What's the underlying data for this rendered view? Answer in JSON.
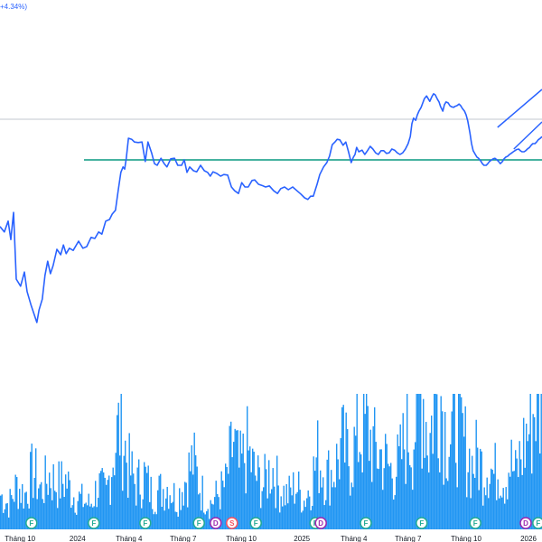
{
  "header": {
    "change_text": "+4.34%)"
  },
  "colors": {
    "price_line": "#2962ff",
    "support_line": "#089981",
    "volume": "#2196f3",
    "reference_line": "#c3c7cf",
    "event_f": "#22ab94",
    "event_d": "#9c27b0",
    "event_s": "#f7525f",
    "axis_text": "#131722"
  },
  "chart_data": {
    "type": "line",
    "title": "",
    "xlabel": "",
    "ylabel": "",
    "grid": false,
    "x_ticks": [
      {
        "label": "Tháng 10",
        "pos": 0.037
      },
      {
        "label": "2024",
        "pos": 0.143
      },
      {
        "label": "Tháng 4",
        "pos": 0.238
      },
      {
        "label": "Tháng 7",
        "pos": 0.338
      },
      {
        "label": "Tháng 10",
        "pos": 0.445
      },
      {
        "label": "2025",
        "pos": 0.557
      },
      {
        "label": "Tháng 4",
        "pos": 0.653
      },
      {
        "label": "Tháng 7",
        "pos": 0.753
      },
      {
        "label": "Tháng 10",
        "pos": 0.86
      },
      {
        "label": "2026",
        "pos": 0.975
      }
    ],
    "price_series": [
      [
        0.0,
        0.418
      ],
      [
        0.008,
        0.428
      ],
      [
        0.015,
        0.408
      ],
      [
        0.02,
        0.442
      ],
      [
        0.025,
        0.392
      ],
      [
        0.03,
        0.515
      ],
      [
        0.038,
        0.528
      ],
      [
        0.045,
        0.502
      ],
      [
        0.05,
        0.538
      ],
      [
        0.057,
        0.562
      ],
      [
        0.063,
        0.58
      ],
      [
        0.068,
        0.595
      ],
      [
        0.072,
        0.572
      ],
      [
        0.078,
        0.552
      ],
      [
        0.083,
        0.508
      ],
      [
        0.088,
        0.482
      ],
      [
        0.093,
        0.505
      ],
      [
        0.098,
        0.49
      ],
      [
        0.105,
        0.46
      ],
      [
        0.112,
        0.47
      ],
      [
        0.117,
        0.452
      ],
      [
        0.122,
        0.468
      ],
      [
        0.128,
        0.458
      ],
      [
        0.135,
        0.462
      ],
      [
        0.145,
        0.445
      ],
      [
        0.153,
        0.458
      ],
      [
        0.16,
        0.455
      ],
      [
        0.168,
        0.438
      ],
      [
        0.175,
        0.44
      ],
      [
        0.182,
        0.428
      ],
      [
        0.188,
        0.432
      ],
      [
        0.195,
        0.408
      ],
      [
        0.202,
        0.405
      ],
      [
        0.207,
        0.395
      ],
      [
        0.213,
        0.388
      ],
      [
        0.218,
        0.352
      ],
      [
        0.223,
        0.318
      ],
      [
        0.227,
        0.308
      ],
      [
        0.23,
        0.312
      ],
      [
        0.233,
        0.292
      ],
      [
        0.237,
        0.255
      ],
      [
        0.243,
        0.257
      ],
      [
        0.248,
        0.262
      ],
      [
        0.255,
        0.263
      ],
      [
        0.262,
        0.262
      ],
      [
        0.268,
        0.298
      ],
      [
        0.273,
        0.262
      ],
      [
        0.28,
        0.283
      ],
      [
        0.285,
        0.302
      ],
      [
        0.29,
        0.305
      ],
      [
        0.297,
        0.292
      ],
      [
        0.303,
        0.302
      ],
      [
        0.308,
        0.308
      ],
      [
        0.315,
        0.293
      ],
      [
        0.322,
        0.292
      ],
      [
        0.328,
        0.305
      ],
      [
        0.335,
        0.305
      ],
      [
        0.34,
        0.295
      ],
      [
        0.345,
        0.318
      ],
      [
        0.35,
        0.308
      ],
      [
        0.357,
        0.315
      ],
      [
        0.363,
        0.317
      ],
      [
        0.37,
        0.305
      ],
      [
        0.377,
        0.315
      ],
      [
        0.383,
        0.318
      ],
      [
        0.388,
        0.325
      ],
      [
        0.393,
        0.317
      ],
      [
        0.4,
        0.32
      ],
      [
        0.407,
        0.325
      ],
      [
        0.413,
        0.322
      ],
      [
        0.42,
        0.323
      ],
      [
        0.427,
        0.345
      ],
      [
        0.433,
        0.352
      ],
      [
        0.44,
        0.357
      ],
      [
        0.446,
        0.337
      ],
      [
        0.452,
        0.345
      ],
      [
        0.458,
        0.345
      ],
      [
        0.465,
        0.333
      ],
      [
        0.47,
        0.332
      ],
      [
        0.477,
        0.34
      ],
      [
        0.483,
        0.342
      ],
      [
        0.49,
        0.345
      ],
      [
        0.497,
        0.343
      ],
      [
        0.505,
        0.352
      ],
      [
        0.512,
        0.357
      ],
      [
        0.518,
        0.348
      ],
      [
        0.525,
        0.345
      ],
      [
        0.532,
        0.35
      ],
      [
        0.54,
        0.345
      ],
      [
        0.548,
        0.352
      ],
      [
        0.555,
        0.358
      ],
      [
        0.562,
        0.365
      ],
      [
        0.568,
        0.368
      ],
      [
        0.573,
        0.362
      ],
      [
        0.578,
        0.362
      ],
      [
        0.585,
        0.34
      ],
      [
        0.59,
        0.322
      ],
      [
        0.597,
        0.308
      ],
      [
        0.603,
        0.3
      ],
      [
        0.608,
        0.288
      ],
      [
        0.613,
        0.267
      ],
      [
        0.618,
        0.262
      ],
      [
        0.622,
        0.257
      ],
      [
        0.627,
        0.258
      ],
      [
        0.633,
        0.268
      ],
      [
        0.638,
        0.262
      ],
      [
        0.643,
        0.28
      ],
      [
        0.648,
        0.3
      ],
      [
        0.652,
        0.29
      ],
      [
        0.655,
        0.285
      ],
      [
        0.658,
        0.272
      ],
      [
        0.662,
        0.28
      ],
      [
        0.668,
        0.277
      ],
      [
        0.673,
        0.285
      ],
      [
        0.678,
        0.278
      ],
      [
        0.683,
        0.27
      ],
      [
        0.688,
        0.275
      ],
      [
        0.693,
        0.282
      ],
      [
        0.698,
        0.285
      ],
      [
        0.703,
        0.278
      ],
      [
        0.708,
        0.278
      ],
      [
        0.713,
        0.283
      ],
      [
        0.718,
        0.282
      ],
      [
        0.723,
        0.275
      ],
      [
        0.728,
        0.277
      ],
      [
        0.733,
        0.282
      ],
      [
        0.738,
        0.285
      ],
      [
        0.743,
        0.282
      ],
      [
        0.748,
        0.275
      ],
      [
        0.753,
        0.265
      ],
      [
        0.757,
        0.252
      ],
      [
        0.76,
        0.228
      ],
      [
        0.763,
        0.218
      ],
      [
        0.767,
        0.222
      ],
      [
        0.77,
        0.212
      ],
      [
        0.773,
        0.205
      ],
      [
        0.777,
        0.198
      ],
      [
        0.78,
        0.19
      ],
      [
        0.783,
        0.182
      ],
      [
        0.787,
        0.177
      ],
      [
        0.79,
        0.182
      ],
      [
        0.793,
        0.187
      ],
      [
        0.797,
        0.178
      ],
      [
        0.8,
        0.173
      ],
      [
        0.803,
        0.175
      ],
      [
        0.807,
        0.183
      ],
      [
        0.81,
        0.188
      ],
      [
        0.813,
        0.197
      ],
      [
        0.817,
        0.205
      ],
      [
        0.82,
        0.193
      ],
      [
        0.823,
        0.188
      ],
      [
        0.827,
        0.19
      ],
      [
        0.83,
        0.195
      ],
      [
        0.833,
        0.197
      ],
      [
        0.837,
        0.198
      ],
      [
        0.84,
        0.196
      ],
      [
        0.843,
        0.195
      ],
      [
        0.847,
        0.192
      ],
      [
        0.85,
        0.195
      ],
      [
        0.853,
        0.2
      ],
      [
        0.857,
        0.205
      ],
      [
        0.86,
        0.212
      ],
      [
        0.863,
        0.223
      ],
      [
        0.867,
        0.245
      ],
      [
        0.87,
        0.265
      ],
      [
        0.873,
        0.278
      ],
      [
        0.877,
        0.285
      ],
      [
        0.88,
        0.29
      ],
      [
        0.883,
        0.292
      ],
      [
        0.887,
        0.297
      ],
      [
        0.89,
        0.302
      ],
      [
        0.893,
        0.305
      ],
      [
        0.897,
        0.305
      ],
      [
        0.9,
        0.302
      ],
      [
        0.903,
        0.298
      ],
      [
        0.907,
        0.295
      ],
      [
        0.91,
        0.293
      ],
      [
        0.913,
        0.292
      ],
      [
        0.917,
        0.295
      ],
      [
        0.92,
        0.298
      ],
      [
        0.923,
        0.302
      ],
      [
        0.927,
        0.298
      ],
      [
        0.93,
        0.293
      ],
      [
        0.933,
        0.29
      ],
      [
        0.937,
        0.288
      ],
      [
        0.94,
        0.285
      ],
      [
        0.943,
        0.283
      ],
      [
        0.947,
        0.28
      ],
      [
        0.95,
        0.278
      ],
      [
        0.953,
        0.276
      ],
      [
        0.957,
        0.275
      ],
      [
        0.96,
        0.278
      ],
      [
        0.963,
        0.28
      ],
      [
        0.967,
        0.28
      ],
      [
        0.97,
        0.278
      ],
      [
        0.973,
        0.275
      ],
      [
        0.977,
        0.272
      ],
      [
        0.98,
        0.268
      ],
      [
        0.983,
        0.265
      ],
      [
        0.987,
        0.265
      ],
      [
        0.99,
        0.262
      ],
      [
        0.993,
        0.258
      ],
      [
        0.997,
        0.255
      ],
      [
        1.0,
        0.252
      ]
    ],
    "volume_series": [
      [
        0.0,
        0.07
      ],
      [
        0.015,
        0.05
      ],
      [
        0.03,
        0.09
      ],
      [
        0.045,
        0.07
      ],
      [
        0.06,
        0.12
      ],
      [
        0.075,
        0.08
      ],
      [
        0.09,
        0.11
      ],
      [
        0.105,
        0.09
      ],
      [
        0.12,
        0.1
      ],
      [
        0.135,
        0.07
      ],
      [
        0.15,
        0.06
      ],
      [
        0.165,
        0.05
      ],
      [
        0.18,
        0.09
      ],
      [
        0.195,
        0.07
      ],
      [
        0.21,
        0.17
      ],
      [
        0.222,
        0.22
      ],
      [
        0.235,
        0.13
      ],
      [
        0.25,
        0.09
      ],
      [
        0.265,
        0.11
      ],
      [
        0.28,
        0.07
      ],
      [
        0.295,
        0.08
      ],
      [
        0.31,
        0.09
      ],
      [
        0.325,
        0.06
      ],
      [
        0.34,
        0.1
      ],
      [
        0.355,
        0.14
      ],
      [
        0.37,
        0.08
      ],
      [
        0.385,
        0.05
      ],
      [
        0.4,
        0.07
      ],
      [
        0.415,
        0.09
      ],
      [
        0.43,
        0.18
      ],
      [
        0.44,
        0.12
      ],
      [
        0.455,
        0.16
      ],
      [
        0.47,
        0.11
      ],
      [
        0.485,
        0.09
      ],
      [
        0.5,
        0.13
      ],
      [
        0.515,
        0.08
      ],
      [
        0.53,
        0.07
      ],
      [
        0.545,
        0.09
      ],
      [
        0.56,
        0.06
      ],
      [
        0.572,
        0.09
      ],
      [
        0.585,
        0.15
      ],
      [
        0.6,
        0.11
      ],
      [
        0.615,
        0.12
      ],
      [
        0.63,
        0.17
      ],
      [
        0.645,
        0.14
      ],
      [
        0.66,
        0.19
      ],
      [
        0.675,
        0.21
      ],
      [
        0.69,
        0.16
      ],
      [
        0.705,
        0.15
      ],
      [
        0.72,
        0.12
      ],
      [
        0.735,
        0.13
      ],
      [
        0.75,
        0.2
      ],
      [
        0.76,
        0.18
      ],
      [
        0.77,
        0.26
      ],
      [
        0.78,
        0.28
      ],
      [
        0.79,
        0.17
      ],
      [
        0.8,
        0.26
      ],
      [
        0.81,
        0.3
      ],
      [
        0.82,
        0.21
      ],
      [
        0.83,
        0.19
      ],
      [
        0.84,
        0.23
      ],
      [
        0.85,
        0.19
      ],
      [
        0.86,
        0.16
      ],
      [
        0.87,
        0.13
      ],
      [
        0.88,
        0.15
      ],
      [
        0.89,
        0.12
      ],
      [
        0.9,
        0.14
      ],
      [
        0.91,
        0.11
      ],
      [
        0.92,
        0.13
      ],
      [
        0.93,
        0.1
      ],
      [
        0.94,
        0.14
      ],
      [
        0.95,
        0.11
      ],
      [
        0.96,
        0.15
      ],
      [
        0.97,
        0.19
      ],
      [
        0.98,
        0.22
      ],
      [
        0.99,
        0.29
      ],
      [
        1.0,
        0.2
      ]
    ],
    "support_level": 0.295,
    "support_start": 0.155,
    "reference_level": 0.22,
    "channel": {
      "upper": [
        [
          0.918,
          0.235
        ],
        [
          1.0,
          0.165
        ]
      ],
      "lower": [
        [
          0.948,
          0.275
        ],
        [
          1.0,
          0.225
        ]
      ]
    },
    "events": [
      {
        "label": "F",
        "type": "event_f",
        "pos": 0.058
      },
      {
        "label": "F",
        "type": "event_f",
        "pos": 0.173
      },
      {
        "label": "F",
        "type": "event_f",
        "pos": 0.268
      },
      {
        "label": "F",
        "type": "event_f",
        "pos": 0.367
      },
      {
        "label": "D",
        "type": "event_d",
        "pos": 0.398
      },
      {
        "label": "S",
        "type": "event_s",
        "pos": 0.428
      },
      {
        "label": "F",
        "type": "event_f",
        "pos": 0.472
      },
      {
        "label": "F",
        "type": "event_f",
        "pos": 0.582
      },
      {
        "label": "D",
        "type": "event_d",
        "pos": 0.592
      },
      {
        "label": "F",
        "type": "event_f",
        "pos": 0.675
      },
      {
        "label": "F",
        "type": "event_f",
        "pos": 0.778
      },
      {
        "label": "F",
        "type": "event_f",
        "pos": 0.877
      },
      {
        "label": "D",
        "type": "event_d",
        "pos": 0.97
      },
      {
        "label": "F",
        "type": "event_f",
        "pos": 0.993
      }
    ]
  }
}
